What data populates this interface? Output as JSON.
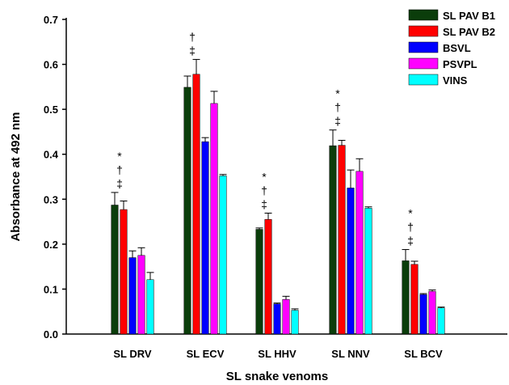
{
  "chart_data": {
    "type": "bar",
    "xlabel": "SL snake venoms",
    "ylabel": "Absorbance at 492 nm",
    "ylim": [
      0,
      0.7
    ],
    "yticks": [
      "0.0",
      "0.1",
      "0.2",
      "0.3",
      "0.4",
      "0.5",
      "0.6",
      "0.7"
    ],
    "categories": [
      "SL DRV",
      "SL ECV",
      "SL HHV",
      "SL NNV",
      "SL BCV"
    ],
    "legend_position": "top-right",
    "grid": false,
    "series": [
      {
        "name": "SL PAV B1",
        "color": "#0b3d0b",
        "values": [
          0.287,
          0.549,
          0.233,
          0.419,
          0.163
        ],
        "errors": [
          0.028,
          0.025,
          0.003,
          0.035,
          0.025
        ]
      },
      {
        "name": "SL PAV B2",
        "color": "#ff0000",
        "values": [
          0.277,
          0.578,
          0.255,
          0.42,
          0.155
        ],
        "errors": [
          0.019,
          0.033,
          0.014,
          0.011,
          0.007
        ]
      },
      {
        "name": "BSVL",
        "color": "#0000ff",
        "values": [
          0.17,
          0.428,
          0.067,
          0.325,
          0.088
        ],
        "errors": [
          0.015,
          0.009,
          0.002,
          0.04,
          0.002
        ]
      },
      {
        "name": "PSVPL",
        "color": "#ff00ff",
        "values": [
          0.175,
          0.513,
          0.077,
          0.362,
          0.095
        ],
        "errors": [
          0.017,
          0.027,
          0.007,
          0.028,
          0.003
        ]
      },
      {
        "name": "VINS",
        "color": "#00ffff",
        "values": [
          0.121,
          0.352,
          0.053,
          0.28,
          0.058
        ],
        "errors": [
          0.016,
          0.003,
          0.003,
          0.003,
          0.002
        ]
      }
    ],
    "significance": [
      {
        "category": "SL DRV",
        "marks": [
          "*",
          "†",
          "‡"
        ]
      },
      {
        "category": "SL ECV",
        "marks": [
          "†",
          "‡"
        ]
      },
      {
        "category": "SL HHV",
        "marks": [
          "*",
          "†",
          "‡"
        ]
      },
      {
        "category": "SL NNV",
        "marks": [
          "*",
          "†",
          "‡"
        ]
      },
      {
        "category": "SL BCV",
        "marks": [
          "*",
          "†",
          "‡"
        ]
      }
    ]
  }
}
